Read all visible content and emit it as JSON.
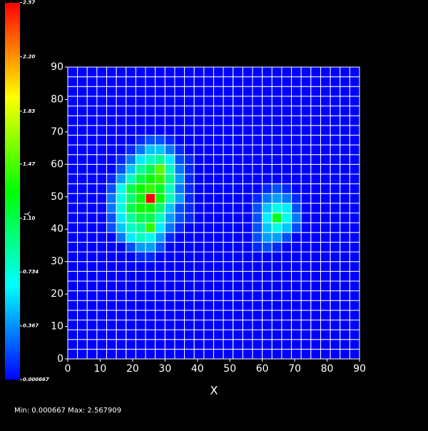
{
  "chart_data": {
    "type": "heatmap",
    "x_label": "X",
    "y_label": "Y",
    "footer": "Min: 0.000667 Max: 2.567909",
    "xlim": [
      0,
      90
    ],
    "ylim": [
      0,
      90
    ],
    "xticks": [
      0,
      10,
      20,
      30,
      40,
      50,
      60,
      70,
      80,
      90
    ],
    "yticks": [
      0,
      10,
      20,
      30,
      40,
      50,
      60,
      70,
      80,
      90
    ],
    "xbins": [
      0,
      3,
      6,
      9,
      12,
      15,
      18,
      21,
      24,
      27,
      30,
      33,
      36,
      39,
      42,
      45,
      48,
      51,
      54,
      57,
      60,
      63,
      66,
      69,
      72,
      75,
      78,
      81,
      84,
      87,
      90
    ],
    "ybins": [
      0,
      3,
      6,
      9,
      12,
      15,
      18,
      21,
      24,
      27,
      30,
      33,
      36,
      39,
      42,
      45,
      48,
      51,
      54,
      57,
      60,
      63,
      66,
      69,
      72,
      75,
      78,
      81,
      84,
      87,
      90
    ],
    "clim": [
      0.000667,
      2.567909
    ],
    "cticks": [
      2.57,
      {
        "value": 2.2,
        "label": "2.20"
      },
      1.83,
      1.47,
      {
        "value": 1.1,
        "label": "1.10"
      },
      0.734,
      0.367,
      0.000667
    ],
    "colormap": [
      "#0000ff",
      "#00ffff",
      "#00ff00",
      "#ffff00",
      "#ff0000"
    ],
    "grid_color": "#ffffff",
    "values": [
      [
        0,
        0,
        0,
        0,
        0,
        0,
        0,
        0,
        0,
        0,
        0,
        0,
        0,
        0,
        0,
        0,
        0,
        0,
        0,
        0,
        0,
        0,
        0,
        0,
        0,
        0,
        0,
        0,
        0,
        0
      ],
      [
        0,
        0,
        0,
        0,
        0,
        0,
        0,
        0,
        0,
        0,
        0,
        0,
        0,
        0,
        0,
        0,
        0,
        0,
        0,
        0,
        0,
        0,
        0,
        0,
        0,
        0,
        0,
        0,
        0,
        0
      ],
      [
        0,
        0,
        0,
        0,
        0,
        0,
        0,
        0,
        0,
        0,
        0,
        0,
        0,
        0,
        0,
        0,
        0,
        0,
        0,
        0,
        0,
        0,
        0,
        0,
        0,
        0,
        0,
        0,
        0,
        0
      ],
      [
        0,
        0,
        0,
        0,
        0,
        0,
        0,
        0,
        0,
        0,
        0,
        0,
        0,
        0,
        0,
        0,
        0,
        0,
        0,
        0,
        0,
        0,
        0,
        0,
        0,
        0,
        0,
        0,
        0,
        0
      ],
      [
        0,
        0,
        0,
        0,
        0,
        0,
        0,
        0,
        0,
        0,
        0,
        0,
        0,
        0,
        0,
        0,
        0,
        0,
        0,
        0,
        0,
        0,
        0,
        0,
        0,
        0,
        0,
        0,
        0,
        0
      ],
      [
        0,
        0,
        0,
        0,
        0,
        0,
        0,
        0,
        0,
        0,
        0,
        0,
        0,
        0,
        0,
        0,
        0,
        0,
        0,
        0,
        0,
        0,
        0,
        0,
        0,
        0,
        0,
        0,
        0,
        0
      ],
      [
        0,
        0,
        0,
        0,
        0,
        0,
        0,
        0,
        0,
        0,
        0,
        0,
        0,
        0,
        0,
        0,
        0,
        0,
        0,
        0,
        0,
        0,
        0,
        0,
        0,
        0,
        0,
        0,
        0,
        0
      ],
      [
        0,
        0,
        0,
        0,
        0,
        0,
        0,
        0,
        0,
        0,
        0,
        0,
        0,
        0,
        0,
        0,
        0,
        0,
        0,
        0,
        0,
        0,
        0,
        0,
        0,
        0,
        0,
        0,
        0,
        0
      ],
      [
        0,
        0,
        0,
        0,
        0,
        0,
        0,
        0,
        0,
        0,
        0,
        0,
        0,
        0,
        0,
        0,
        0,
        0,
        0,
        0,
        0,
        0,
        0,
        0,
        0,
        0,
        0,
        0,
        0,
        0
      ],
      [
        0,
        0,
        0,
        0,
        0,
        0,
        0,
        0,
        0,
        0,
        0,
        0,
        0,
        0,
        0,
        0,
        0,
        0,
        0,
        0,
        0,
        0,
        0,
        0,
        0,
        0,
        0,
        0,
        0,
        0
      ],
      [
        0,
        0,
        0,
        0,
        0,
        0,
        0,
        0.1,
        0.1,
        0,
        0,
        0,
        0,
        0,
        0,
        0,
        0,
        0,
        0,
        0,
        0,
        0,
        0,
        0,
        0,
        0,
        0,
        0,
        0,
        0
      ],
      [
        0,
        0,
        0,
        0,
        0,
        0,
        0.2,
        0.4,
        0.4,
        0.2,
        0,
        0,
        0,
        0,
        0,
        0,
        0,
        0,
        0,
        0.1,
        0.2,
        0.1,
        0,
        0,
        0,
        0,
        0,
        0,
        0,
        0
      ],
      [
        0,
        0,
        0,
        0,
        0,
        0.3,
        0.6,
        0.8,
        0.7,
        0.4,
        0.1,
        0,
        0,
        0,
        0,
        0,
        0,
        0,
        0,
        0.2,
        0.4,
        0.4,
        0.2,
        0,
        0,
        0,
        0,
        0,
        0,
        0
      ],
      [
        0,
        0,
        0,
        0,
        0.2,
        0.5,
        0.8,
        0.9,
        1.4,
        0.6,
        0.3,
        0.1,
        0,
        0,
        0,
        0,
        0,
        0,
        0,
        0.2,
        0.5,
        0.7,
        0.5,
        0.2,
        0,
        0,
        0,
        0,
        0,
        0
      ],
      [
        0,
        0,
        0,
        0,
        0.2,
        0.6,
        0.9,
        1.1,
        1.1,
        0.8,
        0.4,
        0.2,
        0.1,
        0,
        0,
        0,
        0,
        0,
        0,
        0.2,
        0.6,
        1.2,
        0.7,
        0.3,
        0,
        0,
        0,
        0,
        0,
        0
      ],
      [
        0,
        0,
        0,
        0,
        0.3,
        0.7,
        1.1,
        1.3,
        1.3,
        1.0,
        0.5,
        0.2,
        0.1,
        0,
        0,
        0,
        0,
        0,
        0,
        0.2,
        0.5,
        0.7,
        0.6,
        0.2,
        0,
        0,
        0,
        0,
        0,
        0
      ],
      [
        0,
        0,
        0,
        0,
        0.3,
        0.7,
        1.0,
        1.3,
        2.57,
        1.3,
        0.8,
        0.4,
        0.1,
        0,
        0,
        0,
        0,
        0,
        0,
        0.1,
        0.3,
        0.4,
        0.3,
        0.1,
        0,
        0,
        0,
        0,
        0,
        0
      ],
      [
        0,
        0,
        0,
        0,
        0.2,
        0.7,
        1.1,
        1.3,
        1.4,
        1.2,
        0.8,
        0.3,
        0.1,
        0,
        0,
        0,
        0,
        0,
        0,
        0,
        0.1,
        0.2,
        0.1,
        0,
        0,
        0,
        0,
        0,
        0,
        0
      ],
      [
        0,
        0,
        0,
        0,
        0.1,
        0.4,
        0.8,
        1.1,
        1.3,
        1.4,
        0.9,
        0.4,
        0.1,
        0,
        0,
        0,
        0,
        0,
        0,
        0,
        0,
        0,
        0,
        0,
        0,
        0,
        0,
        0,
        0,
        0
      ],
      [
        0,
        0,
        0,
        0,
        0,
        0.2,
        0.5,
        0.9,
        1.1,
        1.5,
        0.8,
        0.3,
        0.1,
        0,
        0,
        0,
        0,
        0,
        0,
        0,
        0,
        0,
        0,
        0,
        0,
        0,
        0,
        0,
        0,
        0
      ],
      [
        0,
        0,
        0,
        0,
        0,
        0.1,
        0.3,
        0.6,
        0.8,
        0.9,
        0.6,
        0.2,
        0.1,
        0,
        0,
        0,
        0,
        0,
        0,
        0,
        0,
        0,
        0,
        0,
        0,
        0,
        0,
        0,
        0,
        0
      ],
      [
        0,
        0,
        0,
        0,
        0,
        0,
        0.1,
        0.3,
        0.5,
        0.5,
        0.3,
        0.1,
        0,
        0,
        0,
        0,
        0,
        0,
        0,
        0,
        0,
        0,
        0,
        0,
        0,
        0,
        0,
        0,
        0,
        0
      ],
      [
        0,
        0,
        0,
        0,
        0,
        0,
        0,
        0.1,
        0.2,
        0.2,
        0.1,
        0,
        0,
        0,
        0,
        0,
        0,
        0,
        0,
        0,
        0,
        0,
        0,
        0,
        0,
        0,
        0,
        0,
        0,
        0
      ],
      [
        0,
        0,
        0,
        0,
        0,
        0,
        0,
        0,
        0,
        0,
        0,
        0,
        0,
        0,
        0,
        0,
        0,
        0,
        0,
        0,
        0,
        0,
        0,
        0,
        0,
        0,
        0,
        0,
        0,
        0
      ],
      [
        0,
        0,
        0,
        0,
        0,
        0,
        0,
        0,
        0,
        0,
        0,
        0,
        0,
        0,
        0,
        0,
        0,
        0,
        0,
        0,
        0,
        0,
        0,
        0,
        0,
        0,
        0,
        0,
        0,
        0
      ],
      [
        0,
        0,
        0,
        0,
        0,
        0,
        0,
        0,
        0,
        0,
        0,
        0,
        0,
        0,
        0,
        0,
        0,
        0,
        0,
        0,
        0,
        0,
        0,
        0,
        0,
        0,
        0,
        0,
        0,
        0
      ],
      [
        0,
        0,
        0,
        0,
        0,
        0,
        0,
        0,
        0,
        0,
        0,
        0,
        0,
        0,
        0,
        0,
        0,
        0,
        0,
        0,
        0,
        0,
        0,
        0,
        0,
        0,
        0,
        0,
        0,
        0
      ],
      [
        0,
        0,
        0,
        0,
        0,
        0,
        0,
        0,
        0,
        0,
        0,
        0,
        0,
        0,
        0,
        0,
        0,
        0,
        0,
        0,
        0,
        0,
        0,
        0,
        0,
        0,
        0,
        0,
        0,
        0
      ],
      [
        0,
        0,
        0,
        0,
        0,
        0,
        0,
        0,
        0,
        0,
        0,
        0,
        0,
        0,
        0,
        0,
        0,
        0,
        0,
        0,
        0,
        0,
        0,
        0,
        0,
        0,
        0,
        0,
        0,
        0
      ],
      [
        0,
        0,
        0,
        0,
        0,
        0,
        0,
        0,
        0,
        0,
        0,
        0,
        0,
        0,
        0,
        0,
        0,
        0,
        0,
        0,
        0,
        0,
        0,
        0,
        0,
        0,
        0,
        0,
        0,
        0
      ]
    ]
  }
}
